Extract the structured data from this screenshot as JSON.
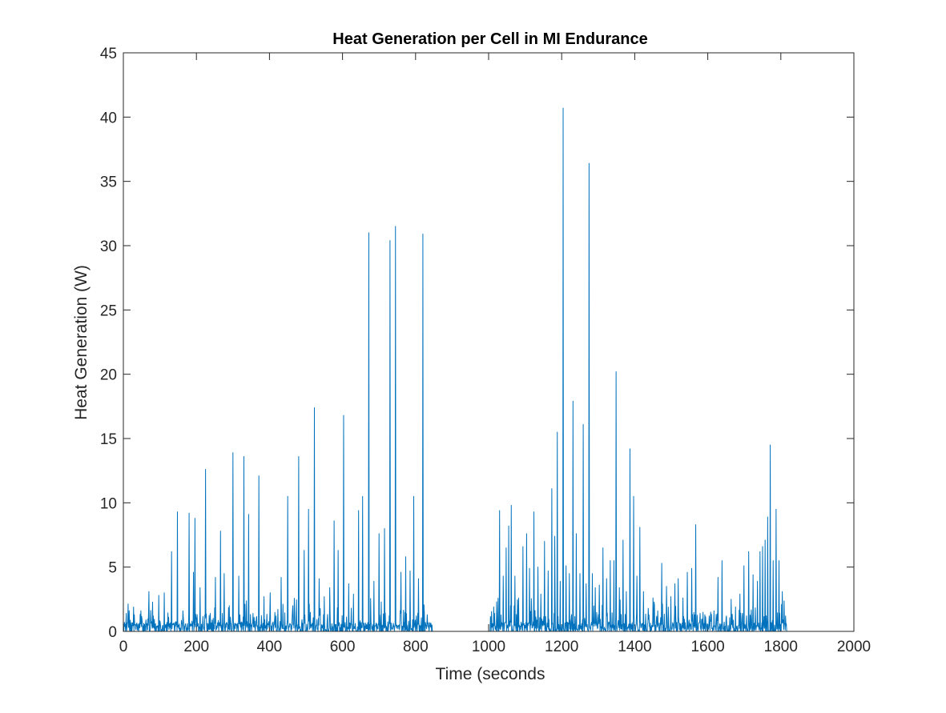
{
  "chart_data": {
    "type": "line",
    "title": "Heat Generation per Cell in MI Endurance",
    "xlabel": "Time (seconds",
    "ylabel": "Heat Generation (W)",
    "xlim": [
      0,
      2000
    ],
    "ylim": [
      0,
      45
    ],
    "xticks": [
      0,
      200,
      400,
      600,
      800,
      1000,
      1200,
      1400,
      1600,
      1800,
      2000
    ],
    "yticks": [
      0,
      5,
      10,
      15,
      20,
      25,
      30,
      35,
      40,
      45
    ],
    "grid": false,
    "box": true,
    "series_color": "#0072BD",
    "series": [
      {
        "peaks": [
          [
            8,
            1.4
          ],
          [
            16,
            1.6
          ],
          [
            28,
            1.9
          ],
          [
            48,
            1.6
          ],
          [
            62,
            0.9
          ],
          [
            70,
            3.1
          ],
          [
            82,
            1.2
          ],
          [
            97,
            2.8
          ],
          [
            112,
            3.0
          ],
          [
            124,
            1.1
          ],
          [
            132,
            6.2
          ],
          [
            148,
            9.3
          ],
          [
            163,
            1.6
          ],
          [
            180,
            9.2
          ],
          [
            192,
            4.6
          ],
          [
            196,
            8.8
          ],
          [
            210,
            3.4
          ],
          [
            225,
            12.6
          ],
          [
            238,
            1.4
          ],
          [
            252,
            4.2
          ],
          [
            266,
            7.8
          ],
          [
            276,
            4.5
          ],
          [
            290,
            2.0
          ],
          [
            300,
            13.9
          ],
          [
            316,
            4.3
          ],
          [
            330,
            13.6
          ],
          [
            343,
            9.1
          ],
          [
            355,
            1.4
          ],
          [
            371,
            12.1
          ],
          [
            385,
            2.7
          ],
          [
            402,
            3.0
          ],
          [
            418,
            1.2
          ],
          [
            432,
            4.2
          ],
          [
            450,
            10.5
          ],
          [
            463,
            1.6
          ],
          [
            480,
            13.6
          ],
          [
            495,
            6.3
          ],
          [
            507,
            9.5
          ],
          [
            523,
            17.4
          ],
          [
            536,
            4.1
          ],
          [
            550,
            2.7
          ],
          [
            565,
            3.4
          ],
          [
            577,
            8.6
          ],
          [
            588,
            6.3
          ],
          [
            603,
            16.8
          ],
          [
            617,
            3.7
          ],
          [
            630,
            2.9
          ],
          [
            644,
            9.4
          ],
          [
            655,
            10.5
          ],
          [
            672,
            31.0
          ],
          [
            686,
            3.9
          ],
          [
            700,
            7.6
          ],
          [
            715,
            8.0
          ],
          [
            730,
            30.4
          ],
          [
            745,
            31.5
          ],
          [
            760,
            4.6
          ],
          [
            773,
            5.8
          ],
          [
            785,
            4.7
          ],
          [
            795,
            10.5
          ],
          [
            808,
            4.1
          ],
          [
            820,
            30.9
          ],
          [
            832,
            1.3
          ],
          [
            845,
            0.5
          ],
          [
            1006,
            0.9
          ],
          [
            1014,
            1.9
          ],
          [
            1022,
            2.3
          ],
          [
            1030,
            9.4
          ],
          [
            1040,
            4.3
          ],
          [
            1048,
            6.5
          ],
          [
            1055,
            8.2
          ],
          [
            1062,
            9.8
          ],
          [
            1072,
            4.3
          ],
          [
            1082,
            2.6
          ],
          [
            1094,
            6.6
          ],
          [
            1104,
            7.6
          ],
          [
            1112,
            4.9
          ],
          [
            1124,
            9.3
          ],
          [
            1135,
            5.0
          ],
          [
            1143,
            2.9
          ],
          [
            1153,
            7.0
          ],
          [
            1163,
            4.7
          ],
          [
            1173,
            11.1
          ],
          [
            1181,
            7.4
          ],
          [
            1188,
            15.5
          ],
          [
            1196,
            3.9
          ],
          [
            1204,
            40.7
          ],
          [
            1212,
            5.1
          ],
          [
            1221,
            4.5
          ],
          [
            1231,
            17.9
          ],
          [
            1240,
            7.6
          ],
          [
            1250,
            4.5
          ],
          [
            1259,
            16.1
          ],
          [
            1267,
            3.7
          ],
          [
            1275,
            36.4
          ],
          [
            1284,
            4.5
          ],
          [
            1292,
            3.4
          ],
          [
            1303,
            3.6
          ],
          [
            1313,
            6.5
          ],
          [
            1323,
            4.1
          ],
          [
            1333,
            5.5
          ],
          [
            1343,
            5.5
          ],
          [
            1349,
            20.2
          ],
          [
            1358,
            3.4
          ],
          [
            1368,
            7.1
          ],
          [
            1377,
            3.1
          ],
          [
            1387,
            14.2
          ],
          [
            1397,
            10.5
          ],
          [
            1406,
            4.3
          ],
          [
            1414,
            8.1
          ],
          [
            1424,
            3.1
          ],
          [
            1437,
            1.8
          ],
          [
            1450,
            2.6
          ],
          [
            1463,
            1.6
          ],
          [
            1474,
            5.3
          ],
          [
            1487,
            3.5
          ],
          [
            1499,
            2.7
          ],
          [
            1510,
            3.7
          ],
          [
            1519,
            4.1
          ],
          [
            1532,
            2.6
          ],
          [
            1544,
            4.6
          ],
          [
            1556,
            4.9
          ],
          [
            1567,
            8.3
          ],
          [
            1579,
            1.4
          ],
          [
            1592,
            1.3
          ],
          [
            1604,
            1.2
          ],
          [
            1617,
            1.6
          ],
          [
            1628,
            4.2
          ],
          [
            1639,
            5.5
          ],
          [
            1651,
            1.2
          ],
          [
            1664,
            2.5
          ],
          [
            1676,
            1.9
          ],
          [
            1688,
            2.9
          ],
          [
            1699,
            5.1
          ],
          [
            1712,
            6.2
          ],
          [
            1724,
            4.4
          ],
          [
            1736,
            3.9
          ],
          [
            1743,
            6.2
          ],
          [
            1750,
            6.6
          ],
          [
            1757,
            7.1
          ],
          [
            1764,
            8.9
          ],
          [
            1771,
            14.5
          ],
          [
            1779,
            5.5
          ],
          [
            1787,
            9.5
          ],
          [
            1795,
            5.5
          ],
          [
            1804,
            3.1
          ],
          [
            1813,
            1.2
          ]
        ]
      }
    ]
  }
}
